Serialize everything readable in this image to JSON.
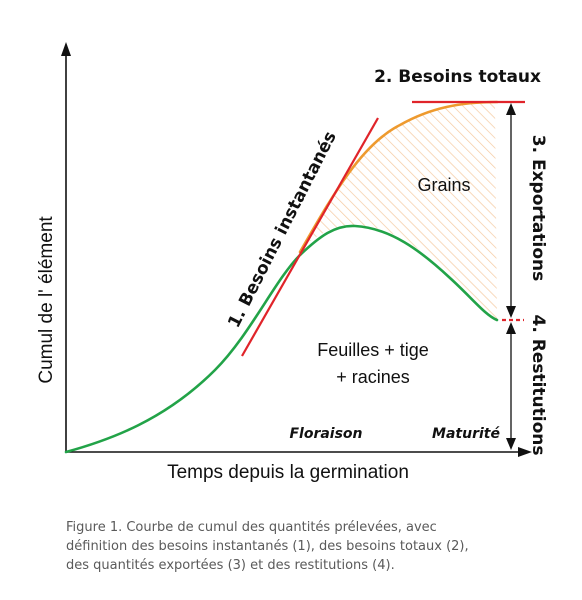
{
  "diagram": {
    "colors": {
      "axis": "#111111",
      "green_curve": "#22a348",
      "orange_curve": "#ee9a2e",
      "red_line": "#e0242a",
      "hatch": "#f4c9a0"
    },
    "y_axis_label": "Cumul de l'  élément",
    "x_axis_label": "Temps depuis la germination",
    "labels": {
      "besoins_instantanes": "1. Besoins instantanés",
      "besoins_totaux": "2. Besoins totaux",
      "exportations": "3. Exportations",
      "restitutions": "4. Restitutions",
      "grains": "Grains",
      "feuilles_line1": "Feuilles + tige",
      "feuilles_line2": "+ racines",
      "floraison": "Floraison",
      "maturite": "Maturité"
    }
  },
  "caption": {
    "line1": "Figure 1. Courbe de cumul des quantités prélevées, avec",
    "line2": "définition des besoins instantanés (1), des besoins totaux (2),",
    "line3": "des quantités exportées (3) et des restitutions (4)."
  }
}
